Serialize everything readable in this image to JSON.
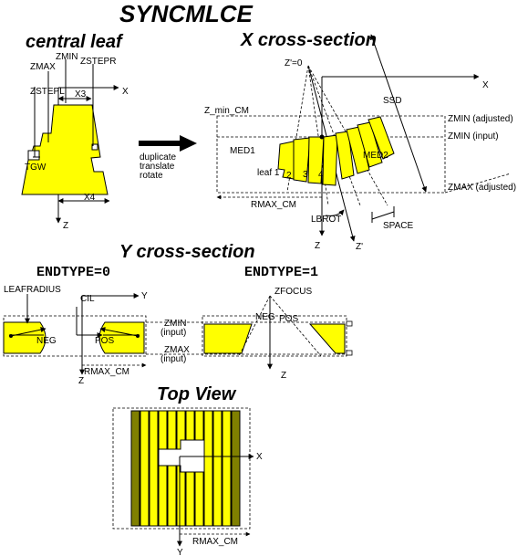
{
  "title": "SYNCMLCE",
  "central_leaf": {
    "heading": "central leaf",
    "zstepl": "ZSTEPL",
    "zmax": "ZMAX",
    "zmin": "ZMIN",
    "zstepr": "ZSTEPR",
    "x3": "X3",
    "x4": "X4",
    "x_axis": "X",
    "z_axis": "Z",
    "tgw": "TGW"
  },
  "transform": {
    "line1": "duplicate",
    "line2": "translate",
    "line3": "rotate"
  },
  "x_section": {
    "heading": "X cross-section",
    "zprime0": "Z'=0",
    "x_axis": "X",
    "ssd": "SSD",
    "z_min_cm": "Z_min_CM",
    "zmin_adjusted": "ZMIN (adjusted)",
    "zmin_input": "ZMIN (input)",
    "zmax_adjusted": "ZMAX (adjusted)",
    "med1": "MED1",
    "med2": "MED2",
    "leaf1": "leaf 1",
    "leaf2": "2",
    "leaf3": "3",
    "leaf4": "4",
    "rmax_cm": "RMAX_CM",
    "lbrot": "LBROT",
    "space": "SPACE",
    "z_axis": "Z",
    "zprime_axis": "Z'"
  },
  "y_section": {
    "heading": "Y cross-section",
    "endtype0": "ENDTYPE=0",
    "endtype1": "ENDTYPE=1",
    "leafradius": "LEAFRADIUS",
    "cil": "CIL",
    "y_axis": "Y",
    "neg": "NEG",
    "pos": "POS",
    "zmin": "ZMIN",
    "input1": "(input)",
    "zmax": "ZMAX",
    "input2": "(input)",
    "rmax_cm": "RMAX_CM",
    "z_axis": "Z",
    "zfocus": "ZFOCUS",
    "neg2": "NEG",
    "pos2": "POS",
    "z_axis2": "Z"
  },
  "top_view": {
    "heading": "Top View",
    "x_axis": "X",
    "y_axis": "Y",
    "rmax_cm": "RMAX_CM"
  },
  "colors": {
    "leaf_fill": "#ffff00",
    "edge_leaf_fill": "#808000",
    "line": "#000000"
  }
}
